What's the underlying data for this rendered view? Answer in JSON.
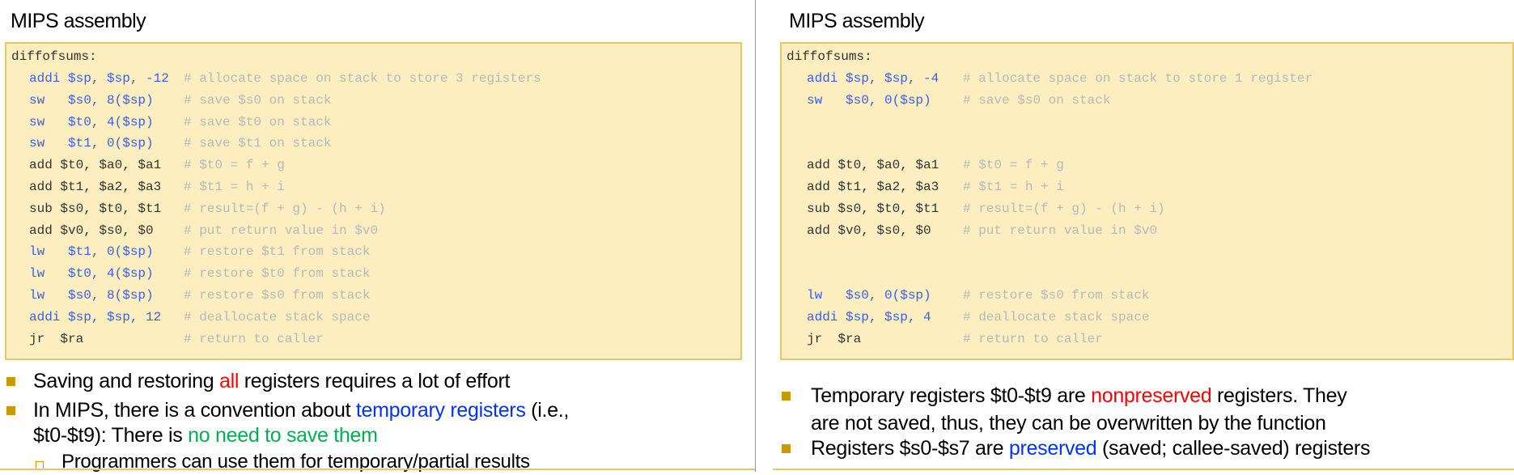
{
  "colors": {
    "code_bg": "#fdeec0",
    "code_border": "#e6c86a",
    "instr_blue": "#3a5ef0",
    "comment": "#b8b8b8",
    "bullet": "#c99a06",
    "red": "#ff0000",
    "blue": "#0033ff",
    "green": "#00b050"
  },
  "left": {
    "title": "MIPS assembly",
    "label": "diffofsums:",
    "code": [
      {
        "instr": "addi $sp, $sp, -12",
        "comment": "# allocate space on stack to store 3 registers",
        "color": "blue"
      },
      {
        "instr": "sw   $s0, 8($sp)",
        "comment": "# save $s0 on stack",
        "color": "blue"
      },
      {
        "instr": "sw   $t0, 4($sp)",
        "comment": "# save $t0 on stack",
        "color": "blue"
      },
      {
        "instr": "sw   $t1, 0($sp)",
        "comment": "# save $t1 on stack",
        "color": "blue"
      },
      {
        "instr": "add $t0, $a0, $a1",
        "comment": "# $t0 = f + g",
        "color": "black"
      },
      {
        "instr": "add $t1, $a2, $a3",
        "comment": "# $t1 = h + i",
        "color": "black"
      },
      {
        "instr": "sub $s0, $t0, $t1",
        "comment": "# result=(f + g) - (h + i)",
        "color": "black"
      },
      {
        "instr": "add $v0, $s0, $0",
        "comment": "# put return value in $v0",
        "color": "black"
      },
      {
        "instr": "lw   $t1, 0($sp)",
        "comment": "# restore $t1 from stack",
        "color": "blue"
      },
      {
        "instr": "lw   $t0, 4($sp)",
        "comment": "# restore $t0 from stack",
        "color": "blue"
      },
      {
        "instr": "lw   $s0, 8($sp)",
        "comment": "# restore $s0 from stack",
        "color": "blue"
      },
      {
        "instr": "addi $sp, $sp, 12",
        "comment": "# deallocate stack space",
        "color": "blue"
      },
      {
        "instr": "jr  $ra",
        "comment": "# return to caller",
        "color": "black"
      }
    ],
    "bullets": [
      {
        "parts": [
          "Saving and restoring ",
          "all",
          " registers requires a lot of effort"
        ]
      },
      {
        "parts": [
          "In MIPS, there is a convention about ",
          "temporary registers",
          " (i.e.,"
        ],
        "cont": [
          "$t0-$t9): There is ",
          "no need to save them"
        ]
      }
    ],
    "sub_bullet": "Programmers can use them for temporary/partial results"
  },
  "right": {
    "title": "MIPS assembly",
    "label": "diffofsums:",
    "code": [
      {
        "instr": "addi $sp, $sp, -4",
        "comment": "# allocate space on stack to store 1 register",
        "color": "blue"
      },
      {
        "instr": "sw   $s0, 0($sp)",
        "comment": "# save $s0 on stack",
        "color": "blue"
      },
      {
        "instr": "",
        "comment": "",
        "color": "black"
      },
      {
        "instr": "",
        "comment": "",
        "color": "black"
      },
      {
        "instr": "add $t0, $a0, $a1",
        "comment": "# $t0 = f + g",
        "color": "black"
      },
      {
        "instr": "add $t1, $a2, $a3",
        "comment": "# $t1 = h + i",
        "color": "black"
      },
      {
        "instr": "sub $s0, $t0, $t1",
        "comment": "# result=(f + g) - (h + i)",
        "color": "black"
      },
      {
        "instr": "add $v0, $s0, $0",
        "comment": "# put return value in $v0",
        "color": "black"
      },
      {
        "instr": "",
        "comment": "",
        "color": "black"
      },
      {
        "instr": "",
        "comment": "",
        "color": "black"
      },
      {
        "instr": "lw   $s0, 0($sp)",
        "comment": "# restore $s0 from stack",
        "color": "blue"
      },
      {
        "instr": "addi $sp, $sp, 4",
        "comment": "# deallocate stack space",
        "color": "blue"
      },
      {
        "instr": "jr  $ra",
        "comment": "# return to caller",
        "color": "black"
      }
    ],
    "bullets": [
      {
        "parts": [
          "Temporary registers $t0-$t9 are ",
          "nonpreserved",
          " registers. They"
        ],
        "cont": [
          "are not saved, thus, they can be overwritten by the function"
        ]
      },
      {
        "parts": [
          "Registers $s0-$s7 are ",
          "preserved",
          " (saved; callee-saved) registers"
        ]
      }
    ]
  }
}
